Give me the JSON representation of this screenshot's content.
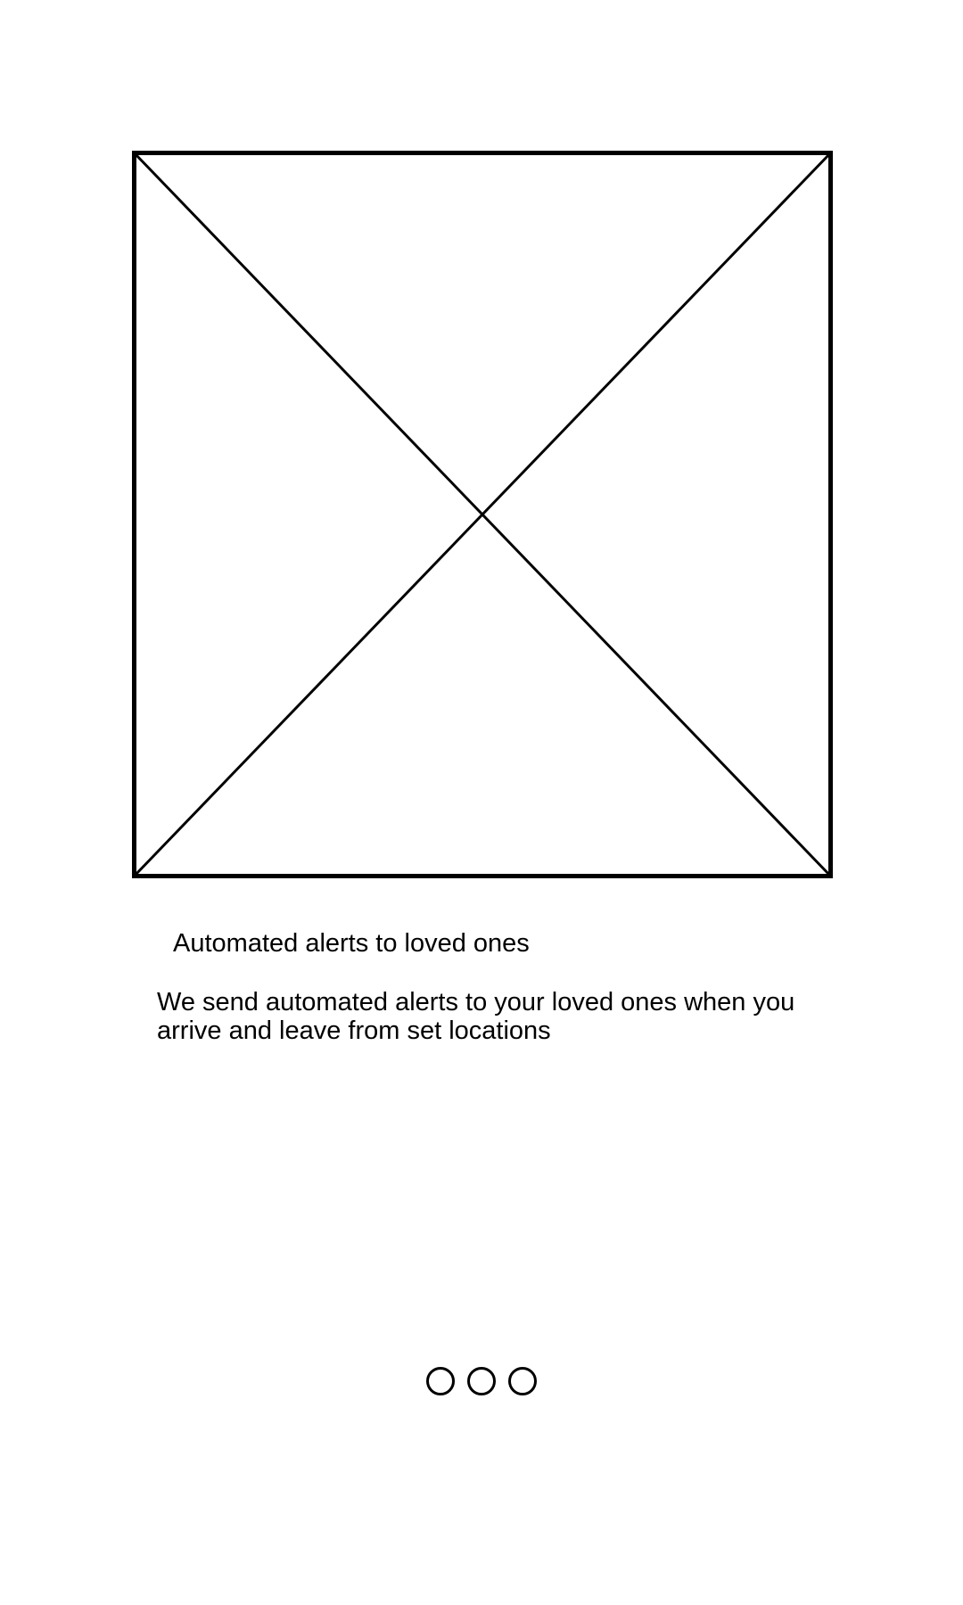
{
  "onboarding": {
    "image": {
      "icon": "image-placeholder-icon"
    },
    "title": "Automated alerts to loved ones",
    "description": "We send automated alerts to your loved ones when you arrive and leave from set locations",
    "pager": {
      "total_pages": 3
    }
  }
}
